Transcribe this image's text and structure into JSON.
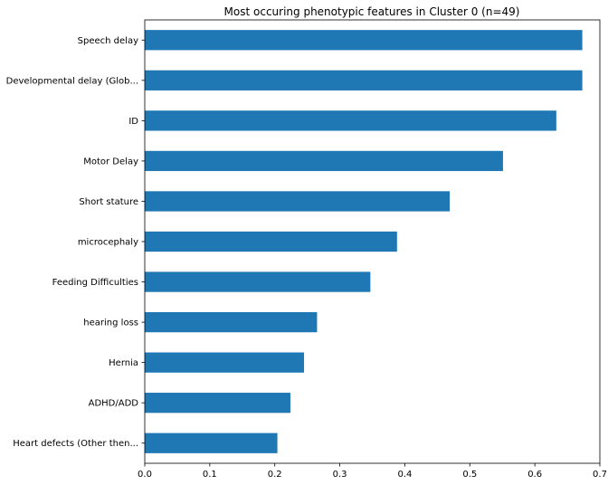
{
  "colors": {
    "bar": "#1f77b4",
    "axis": "#000000",
    "background": "#ffffff"
  },
  "chart_data": {
    "type": "bar",
    "orientation": "horizontal",
    "title": "Most occuring phenotypic features in Cluster 0 (n=49)",
    "xlabel": "",
    "ylabel": "",
    "xlim": [
      0,
      0.7
    ],
    "grid": false,
    "xticks": [
      "0.0",
      "0.1",
      "0.2",
      "0.3",
      "0.4",
      "0.5",
      "0.6",
      "0.7"
    ],
    "categories": [
      "Speech delay",
      "Developmental delay (Glob...",
      "ID",
      "Motor Delay",
      "Short stature",
      "microcephaly",
      "Feeding Difficulties",
      "hearing loss",
      "Hernia",
      "ADHD/ADD",
      "Heart defects (Other then..."
    ],
    "values": [
      0.673,
      0.673,
      0.633,
      0.551,
      0.469,
      0.388,
      0.347,
      0.265,
      0.245,
      0.224,
      0.204
    ]
  }
}
